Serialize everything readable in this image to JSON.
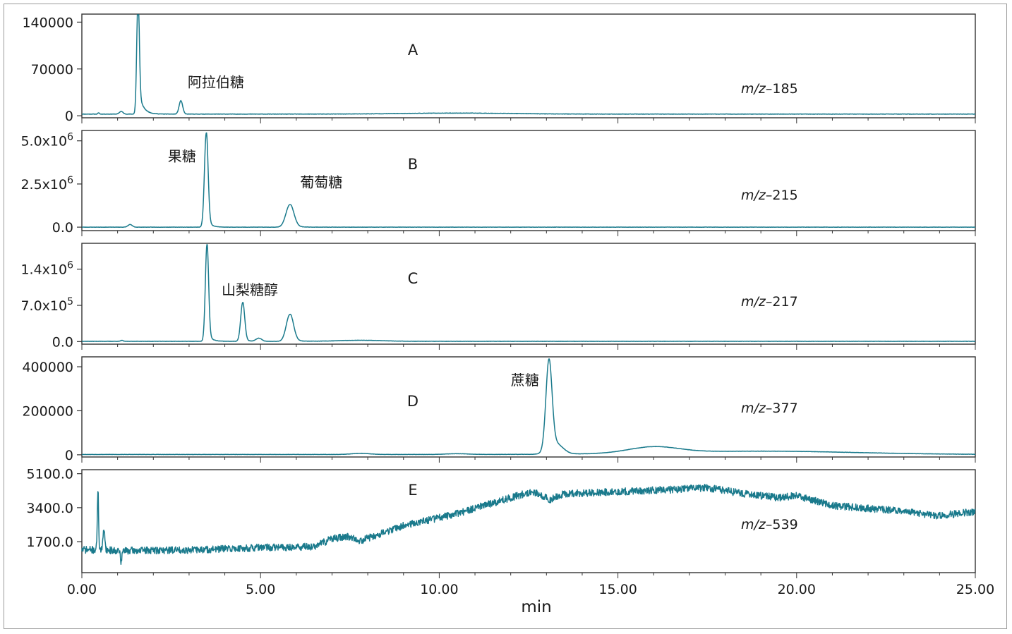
{
  "colors": {
    "trace": "#1a7a8c",
    "frame": "#333333"
  },
  "chart_data": [
    {
      "type": "line",
      "panel": "A",
      "mz": "m/z–185",
      "x_unit": "min",
      "xlim": [
        0,
        25
      ],
      "ylim": [
        -3000,
        152000
      ],
      "yticks": [
        {
          "value": 0,
          "label": "0"
        },
        {
          "value": 70000,
          "label": "70000"
        },
        {
          "value": 140000,
          "label": "140000"
        }
      ],
      "baseline": 2500,
      "noise": 300,
      "seed": 11,
      "peaks": [
        {
          "t": 0.47,
          "h": 2000,
          "w": 0.02
        },
        {
          "t": 1.1,
          "h": 4000,
          "w": 0.05
        },
        {
          "t": 1.57,
          "h": 172000,
          "w": 0.035,
          "tail": 0.12,
          "tailh": 40000
        },
        {
          "t": 2.77,
          "h": 20000,
          "w": 0.05
        },
        {
          "t": 10.5,
          "h": 1500,
          "w": 1.5
        }
      ],
      "annotations": [
        {
          "text": "阿拉伯糖",
          "x": 3.75,
          "y": 50000
        }
      ]
    },
    {
      "type": "line",
      "panel": "B",
      "mz": "m/z–215",
      "x_unit": "min",
      "xlim": [
        0,
        25
      ],
      "ylim": [
        -200000,
        5600000
      ],
      "yticks": [
        {
          "value": 0,
          "label": "0.0",
          "exp": ""
        },
        {
          "value": 2500000,
          "label": "2.5x10",
          "exp": "6"
        },
        {
          "value": 5000000,
          "label": "5.0x10",
          "exp": "6"
        }
      ],
      "baseline": 0,
      "noise": 8000,
      "seed": 23,
      "peaks": [
        {
          "t": 1.35,
          "h": 150000,
          "w": 0.06
        },
        {
          "t": 3.48,
          "h": 5450000,
          "w": 0.05,
          "tail": 0.1,
          "tailh": 600000
        },
        {
          "t": 5.82,
          "h": 1300000,
          "w": 0.11,
          "tail": 0.15,
          "tailh": 150000
        }
      ],
      "annotations": [
        {
          "text": "果糖",
          "x": 2.8,
          "y": 4100000
        },
        {
          "text": "葡萄糖",
          "x": 6.7,
          "y": 2600000
        }
      ]
    },
    {
      "type": "line",
      "panel": "C",
      "mz": "m/z–217",
      "x_unit": "min",
      "xlim": [
        0,
        25
      ],
      "ylim": [
        -50000,
        1900000
      ],
      "yticks": [
        {
          "value": 0,
          "label": "0.0",
          "exp": ""
        },
        {
          "value": 700000,
          "label": "7.0x10",
          "exp": "5"
        },
        {
          "value": 1400000,
          "label": "1.4x10",
          "exp": "6"
        }
      ],
      "baseline": 5000,
      "noise": 3000,
      "seed": 37,
      "peaks": [
        {
          "t": 1.12,
          "h": 20000,
          "w": 0.03
        },
        {
          "t": 3.5,
          "h": 1870000,
          "w": 0.045,
          "tail": 0.1,
          "tailh": 200000
        },
        {
          "t": 4.5,
          "h": 750000,
          "w": 0.055,
          "tail": 0.1,
          "tailh": 60000
        },
        {
          "t": 4.95,
          "h": 60000,
          "w": 0.08
        },
        {
          "t": 5.82,
          "h": 520000,
          "w": 0.1,
          "tail": 0.15,
          "tailh": 60000
        },
        {
          "t": 7.8,
          "h": 20000,
          "w": 0.6
        }
      ],
      "annotations": [
        {
          "text": "山梨糖醇",
          "x": 4.7,
          "y": 1000000
        }
      ]
    },
    {
      "type": "line",
      "panel": "D",
      "mz": "m/z–377",
      "x_unit": "min",
      "xlim": [
        0,
        25
      ],
      "ylim": [
        -10000,
        445000
      ],
      "yticks": [
        {
          "value": 0,
          "label": "0"
        },
        {
          "value": 200000,
          "label": "200000"
        },
        {
          "value": 400000,
          "label": "400000"
        }
      ],
      "baseline": 1500,
      "noise": 600,
      "seed": 53,
      "peaks": [
        {
          "t": 7.8,
          "h": 5000,
          "w": 0.25
        },
        {
          "t": 10.5,
          "h": 3500,
          "w": 0.3
        },
        {
          "t": 13.07,
          "h": 400000,
          "w": 0.085
        },
        {
          "t": 13.25,
          "h": 50000,
          "w": 0.2
        },
        {
          "t": 16.0,
          "h": 28000,
          "w": 0.7
        },
        {
          "t": 19.0,
          "h": 15000,
          "w": 2.6
        }
      ],
      "annotations": [
        {
          "text": "蔗糖",
          "x": 12.4,
          "y": 340000
        }
      ]
    },
    {
      "type": "line",
      "panel": "E",
      "mz": "m/z–539",
      "x_unit": "min",
      "xlabel": "min",
      "xlim": [
        0,
        25
      ],
      "ylim": [
        150,
        5300
      ],
      "yticks": [
        {
          "value": 1700,
          "label": "1700.0"
        },
        {
          "value": 3400,
          "label": "3400.0"
        },
        {
          "value": 5100,
          "label": "5100.0"
        }
      ],
      "xticks": [
        {
          "value": 0,
          "label": "0.00"
        },
        {
          "value": 5,
          "label": "5.00"
        },
        {
          "value": 10,
          "label": "10.00"
        },
        {
          "value": 15,
          "label": "15.00"
        },
        {
          "value": 20,
          "label": "20.00"
        },
        {
          "value": 25,
          "label": "25.00"
        }
      ],
      "noise": 180,
      "seed": 71,
      "baseline_points": [
        [
          0,
          1300
        ],
        [
          1.2,
          1250
        ],
        [
          3.4,
          1300
        ],
        [
          5.0,
          1400
        ],
        [
          6.5,
          1450
        ],
        [
          7.0,
          1850
        ],
        [
          7.5,
          1950
        ],
        [
          7.8,
          1750
        ],
        [
          9.0,
          2500
        ],
        [
          10.5,
          3100
        ],
        [
          12.0,
          3900
        ],
        [
          12.6,
          4200
        ],
        [
          13.1,
          3800
        ],
        [
          13.5,
          4100
        ],
        [
          15.0,
          4200
        ],
        [
          16.5,
          4300
        ],
        [
          17.5,
          4400
        ],
        [
          18.5,
          4100
        ],
        [
          19.5,
          3900
        ],
        [
          20.0,
          4000
        ],
        [
          21.0,
          3500
        ],
        [
          22.5,
          3300
        ],
        [
          24.0,
          3000
        ],
        [
          25.0,
          3200
        ]
      ],
      "peaks": [
        {
          "t": 0.45,
          "h": 3000,
          "w": 0.018
        },
        {
          "t": 0.62,
          "h": 1100,
          "w": 0.025
        },
        {
          "t": 1.1,
          "h": -600,
          "w": 0.02
        }
      ],
      "annotations": []
    }
  ]
}
